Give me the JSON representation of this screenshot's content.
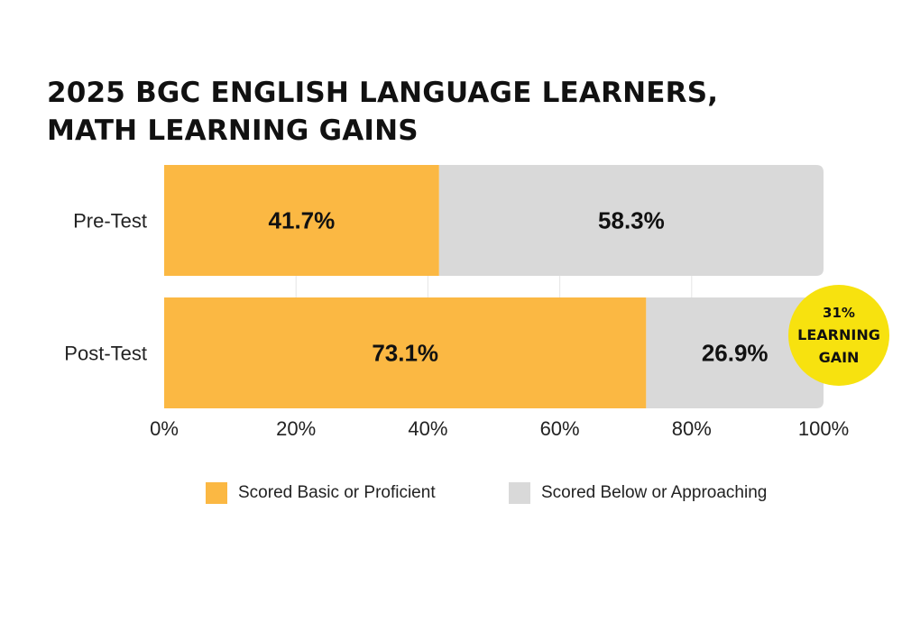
{
  "title": {
    "line1": "2025 BGC ENGLISH LANGUAGE LEARNERS,",
    "line2": "MATH LEARNING GAINS"
  },
  "colors": {
    "basic_proficient": "#FBB843",
    "below_approaching": "#D9D9D9",
    "badge": "#F7E20F",
    "grid": "#E5E5E5"
  },
  "chart_data": {
    "type": "bar",
    "orientation": "horizontal",
    "stacked": true,
    "categories": [
      "Pre-Test",
      "Post-Test"
    ],
    "series": [
      {
        "name": "Scored Basic or Proficient",
        "values": [
          41.7,
          73.1
        ],
        "labels": [
          "41.7%",
          "73.1%"
        ]
      },
      {
        "name": "Scored Below or Approaching",
        "values": [
          58.3,
          26.9
        ],
        "labels": [
          "58.3%",
          "26.9%"
        ]
      }
    ],
    "xlim": [
      0,
      100
    ],
    "xticks": [
      "0%",
      "20%",
      "40%",
      "60%",
      "80%",
      "100%"
    ],
    "xtick_values": [
      0,
      20,
      40,
      60,
      80,
      100
    ],
    "grid": true,
    "legend_position": "bottom",
    "annotation": {
      "lines": [
        "31%",
        "LEARNING",
        "GAIN"
      ]
    }
  }
}
